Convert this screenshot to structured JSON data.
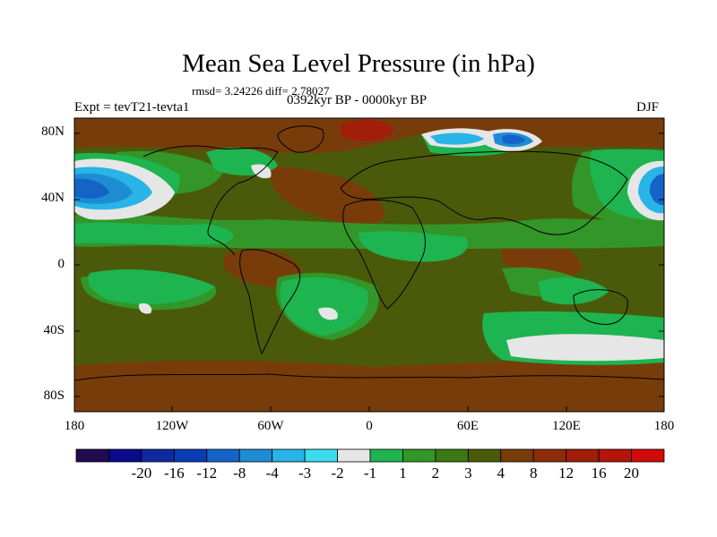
{
  "title": "Mean Sea Level Pressure (in hPa)",
  "stats": "rmsd= 3.24226 diff= 2.78027",
  "period": "0392kyr BP - 0000kyr BP",
  "experiment": "Expt = tevT21-tevta1",
  "season": "DJF",
  "y_axis": {
    "labels": [
      "80N",
      "40N",
      "0",
      "40S",
      "80S"
    ]
  },
  "x_axis": {
    "labels": [
      "180",
      "120W",
      "60W",
      "0",
      "60E",
      "120E",
      "180"
    ]
  },
  "colorbar": {
    "colors": [
      "#200a50",
      "#0a0a8c",
      "#1028a0",
      "#0a3cb4",
      "#1464c8",
      "#1e8cd2",
      "#28b4e6",
      "#3cdcf0",
      "#e6e6e6",
      "#1eb450",
      "#329628",
      "#3c7814",
      "#4b5a0a",
      "#783c0a",
      "#8c2d0a",
      "#a01e0a",
      "#b4140a",
      "#d20a0a"
    ],
    "labels": [
      "-20",
      "-16",
      "-12",
      "-8",
      "-4",
      "-3",
      "-2",
      "-1",
      "1",
      "2",
      "3",
      "4",
      "8",
      "12",
      "16",
      "20"
    ]
  },
  "colors": {
    "base": "#4b5a0a",
    "positive": "#783c0a",
    "high": "#a01e0a",
    "light_green": "#1eb450",
    "mid_green": "#329628",
    "white": "#e6e6e6",
    "blues": [
      "#28b4e6",
      "#1e8cd2",
      "#1464c8"
    ]
  }
}
